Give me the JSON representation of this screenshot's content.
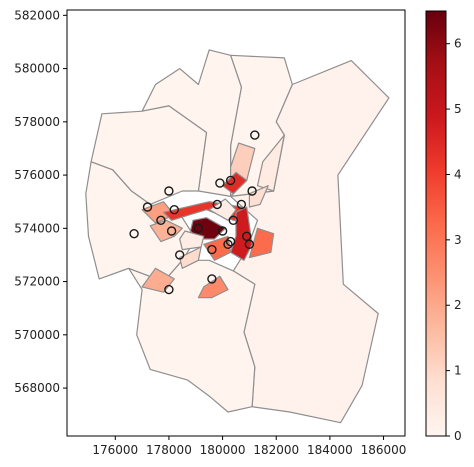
{
  "chart_data": {
    "type": "choropleth",
    "title": "",
    "xlabel": "",
    "ylabel": "",
    "xlim": [
      174200,
      186800
    ],
    "ylim": [
      566200,
      582200
    ],
    "x_ticks": [
      176000,
      178000,
      180000,
      182000,
      184000,
      186000
    ],
    "y_ticks": [
      568000,
      570000,
      572000,
      574000,
      576000,
      578000,
      580000,
      582000
    ],
    "colorbar": {
      "colormap": "Reds",
      "min": 0,
      "max": 6.5,
      "ticks": [
        0,
        1,
        2,
        3,
        4,
        5,
        6
      ]
    },
    "points": [
      {
        "x": 181200,
        "y": 577500
      },
      {
        "x": 178000,
        "y": 575400
      },
      {
        "x": 179900,
        "y": 575700
      },
      {
        "x": 180300,
        "y": 575800
      },
      {
        "x": 181100,
        "y": 575400
      },
      {
        "x": 177200,
        "y": 574800
      },
      {
        "x": 178200,
        "y": 574700
      },
      {
        "x": 179800,
        "y": 574900
      },
      {
        "x": 180700,
        "y": 574900
      },
      {
        "x": 177700,
        "y": 574300
      },
      {
        "x": 180400,
        "y": 574300
      },
      {
        "x": 176700,
        "y": 573800
      },
      {
        "x": 178100,
        "y": 573900
      },
      {
        "x": 179100,
        "y": 574000
      },
      {
        "x": 180000,
        "y": 573900
      },
      {
        "x": 180900,
        "y": 573700
      },
      {
        "x": 180300,
        "y": 573500
      },
      {
        "x": 181000,
        "y": 573400
      },
      {
        "x": 180200,
        "y": 573400
      },
      {
        "x": 179600,
        "y": 573200
      },
      {
        "x": 178400,
        "y": 573000
      },
      {
        "x": 179600,
        "y": 572100
      },
      {
        "x": 178000,
        "y": 571700
      }
    ],
    "regions": [
      {
        "value": 0.1,
        "poly": [
          [
            180300,
            575200
          ],
          [
            181900,
            575400
          ],
          [
            182300,
            577500
          ],
          [
            182000,
            578000
          ],
          [
            182600,
            579400
          ],
          [
            184800,
            580300
          ],
          [
            186200,
            578900
          ],
          [
            184300,
            576000
          ],
          [
            184500,
            571900
          ],
          [
            185800,
            570800
          ],
          [
            185200,
            568100
          ],
          [
            184400,
            566700
          ],
          [
            182500,
            567100
          ],
          [
            181100,
            567300
          ],
          [
            181200,
            568800
          ],
          [
            180800,
            570100
          ],
          [
            181200,
            571900
          ],
          [
            180400,
            572400
          ],
          [
            180900,
            573200
          ],
          [
            181300,
            574300
          ]
        ]
      },
      {
        "value": 0.05,
        "poly": [
          [
            180300,
            575200
          ],
          [
            180300,
            577100
          ],
          [
            180700,
            579300
          ],
          [
            180300,
            580500
          ],
          [
            182300,
            580400
          ],
          [
            182600,
            579400
          ],
          [
            182000,
            578000
          ],
          [
            182300,
            577500
          ],
          [
            181900,
            575400
          ]
        ]
      },
      {
        "value": 0.05,
        "poly": [
          [
            179100,
            575400
          ],
          [
            179400,
            577600
          ],
          [
            178000,
            578600
          ],
          [
            177000,
            578400
          ],
          [
            177500,
            579400
          ],
          [
            178400,
            580000
          ],
          [
            179100,
            579400
          ],
          [
            179500,
            580700
          ],
          [
            180300,
            580500
          ],
          [
            180700,
            579300
          ],
          [
            180300,
            577100
          ],
          [
            180300,
            575200
          ]
        ]
      },
      {
        "value": 0.05,
        "poly": [
          [
            176500,
            572500
          ],
          [
            177000,
            571700
          ],
          [
            176800,
            570000
          ],
          [
            177300,
            568700
          ],
          [
            178700,
            568300
          ],
          [
            179500,
            567700
          ],
          [
            180200,
            567100
          ],
          [
            181100,
            567300
          ],
          [
            181200,
            568800
          ],
          [
            180800,
            570100
          ],
          [
            181200,
            571900
          ],
          [
            180400,
            572400
          ],
          [
            179500,
            572800
          ],
          [
            178500,
            572800
          ],
          [
            177800,
            572000
          ]
        ]
      },
      {
        "value": 0.05,
        "poly": [
          [
            177300,
            574900
          ],
          [
            176600,
            575400
          ],
          [
            175900,
            576200
          ],
          [
            175100,
            576500
          ],
          [
            175500,
            578300
          ],
          [
            177000,
            578400
          ],
          [
            178000,
            578600
          ],
          [
            179400,
            577600
          ],
          [
            179100,
            575400
          ],
          [
            178500,
            575400
          ]
        ]
      },
      {
        "value": 0.05,
        "poly": [
          [
            176500,
            572500
          ],
          [
            177800,
            572000
          ],
          [
            178500,
            572800
          ],
          [
            179000,
            573600
          ],
          [
            178500,
            574400
          ],
          [
            177300,
            574900
          ],
          [
            176600,
            575400
          ],
          [
            175900,
            576200
          ],
          [
            175100,
            576500
          ],
          [
            174900,
            575300
          ],
          [
            175000,
            573700
          ],
          [
            175400,
            572100
          ]
        ]
      },
      {
        "value": 1.2,
        "poly": [
          [
            180300,
            575200
          ],
          [
            180900,
            575800
          ],
          [
            181200,
            577000
          ],
          [
            180600,
            577200
          ],
          [
            180300,
            576300
          ]
        ]
      },
      {
        "value": 0.4,
        "poly": [
          [
            181500,
            576500
          ],
          [
            182300,
            577500
          ],
          [
            181900,
            575400
          ],
          [
            181300,
            575600
          ]
        ]
      },
      {
        "value": 2.2,
        "poly": [
          [
            177000,
            574700
          ],
          [
            177500,
            574200
          ],
          [
            178200,
            574500
          ],
          [
            177800,
            575000
          ]
        ]
      },
      {
        "value": 4.2,
        "poly": [
          [
            177800,
            574600
          ],
          [
            179500,
            575000
          ],
          [
            180700,
            574800
          ],
          [
            180900,
            574200
          ],
          [
            180400,
            574300
          ],
          [
            179400,
            574700
          ],
          [
            178100,
            574300
          ]
        ]
      },
      {
        "value": 1.8,
        "poly": [
          [
            177700,
            573500
          ],
          [
            178200,
            573700
          ],
          [
            178500,
            574000
          ],
          [
            177900,
            574300
          ],
          [
            177300,
            574100
          ]
        ]
      },
      {
        "value": 4.4,
        "poly": [
          [
            180000,
            575600
          ],
          [
            180500,
            576100
          ],
          [
            180900,
            575800
          ],
          [
            180400,
            575300
          ]
        ]
      },
      {
        "value": 0.8,
        "poly": [
          [
            181000,
            575300
          ],
          [
            181700,
            575600
          ],
          [
            181400,
            574900
          ],
          [
            181000,
            574800
          ]
        ]
      },
      {
        "value": 4.8,
        "poly": [
          [
            180500,
            574600
          ],
          [
            180900,
            574800
          ],
          [
            181100,
            573400
          ],
          [
            180800,
            572800
          ],
          [
            180300,
            573100
          ],
          [
            180500,
            573700
          ]
        ]
      },
      {
        "value": 3.2,
        "poly": [
          [
            181000,
            572900
          ],
          [
            181300,
            574000
          ],
          [
            181900,
            573800
          ],
          [
            181800,
            573100
          ]
        ]
      },
      {
        "value": 6.4,
        "poly": [
          [
            178900,
            574300
          ],
          [
            179400,
            574400
          ],
          [
            180100,
            574000
          ],
          [
            179700,
            573600
          ],
          [
            179100,
            573600
          ],
          [
            178800,
            573900
          ]
        ]
      },
      {
        "value": 3.2,
        "poly": [
          [
            179300,
            573400
          ],
          [
            180200,
            573700
          ],
          [
            180300,
            573100
          ],
          [
            179700,
            572800
          ]
        ]
      },
      {
        "value": 0.9,
        "poly": [
          [
            178400,
            572900
          ],
          [
            179200,
            573300
          ],
          [
            179100,
            572800
          ],
          [
            178500,
            572500
          ]
        ]
      },
      {
        "value": 2.6,
        "poly": [
          [
            179300,
            571800
          ],
          [
            179900,
            572200
          ],
          [
            180200,
            571700
          ],
          [
            179600,
            571400
          ],
          [
            179100,
            571400
          ]
        ]
      },
      {
        "value": 1.9,
        "poly": [
          [
            177000,
            571800
          ],
          [
            177500,
            572500
          ],
          [
            178200,
            572100
          ],
          [
            177800,
            571600
          ]
        ]
      },
      {
        "value": 0.3,
        "poly": [
          [
            178600,
            573900
          ],
          [
            179300,
            573700
          ],
          [
            179200,
            573300
          ],
          [
            178500,
            573200
          ],
          [
            178400,
            573600
          ]
        ]
      },
      {
        "value": 0.3,
        "poly": [
          [
            179500,
            574700
          ],
          [
            180100,
            575100
          ],
          [
            180500,
            574700
          ],
          [
            180200,
            574300
          ]
        ]
      }
    ]
  }
}
